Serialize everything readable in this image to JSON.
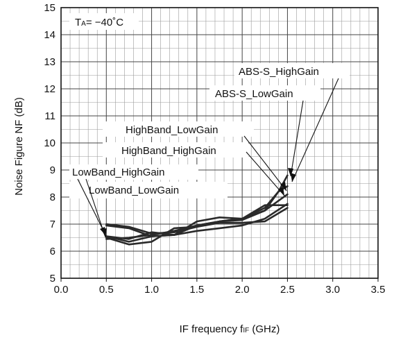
{
  "chart_data": {
    "type": "line",
    "title": "",
    "condition": {
      "prefix": "T",
      "subscript": "A",
      "value": "= −40˚C"
    },
    "xlabel": {
      "main": "IF frequency f",
      "subscript": "IF",
      "unit": " (GHz)"
    },
    "ylabel": "Noise Figure NF (dB)",
    "xlim": [
      0.0,
      3.5
    ],
    "ylim": [
      5,
      15
    ],
    "x_ticks": [
      "0.0",
      "0.5",
      "1.0",
      "1.5",
      "2.0",
      "2.5",
      "3.0",
      "3.5"
    ],
    "y_ticks": [
      "5",
      "6",
      "7",
      "8",
      "9",
      "10",
      "11",
      "12",
      "13",
      "14",
      "15"
    ],
    "grid": true,
    "series": [
      {
        "name": "LowBand_HighGain",
        "x": [
          0.5,
          0.75,
          1.0,
          1.25,
          1.5,
          1.75,
          2.0,
          2.25,
          2.5
        ],
        "y": [
          6.5,
          6.25,
          6.35,
          6.85,
          6.9,
          7.1,
          7.2,
          7.7,
          7.7
        ]
      },
      {
        "name": "LowBand_LowGain",
        "x": [
          0.5,
          0.75,
          1.0,
          1.25,
          1.5,
          1.75,
          2.0,
          2.25,
          2.5
        ],
        "y": [
          6.55,
          6.35,
          6.55,
          6.6,
          7.1,
          7.25,
          7.2,
          7.5,
          8.1
        ]
      },
      {
        "name": "HighBand_HighGain",
        "x": [
          0.5,
          0.75,
          1.0,
          1.25,
          1.5,
          1.75,
          2.0,
          2.25,
          2.5
        ],
        "y": [
          7.0,
          6.9,
          6.65,
          6.7,
          6.9,
          7.05,
          7.05,
          7.1,
          7.6
        ]
      },
      {
        "name": "HighBand_LowGain",
        "x": [
          0.5,
          0.75,
          1.0,
          1.25,
          1.5,
          1.75,
          2.0,
          2.25,
          2.5
        ],
        "y": [
          6.95,
          6.85,
          6.55,
          6.6,
          6.75,
          6.85,
          6.95,
          7.2,
          7.75
        ]
      },
      {
        "name": "ABS-S_HighGain",
        "x": [
          0.5,
          0.75,
          1.0,
          1.25,
          1.5,
          1.75,
          2.0,
          2.25,
          2.4,
          2.5
        ],
        "y": [
          6.55,
          6.45,
          6.7,
          6.6,
          6.95,
          7.1,
          7.15,
          7.5,
          8.2,
          8.4
        ]
      },
      {
        "name": "ABS-S_LowGain",
        "x": [
          0.5,
          0.75,
          1.0,
          1.25,
          1.5,
          1.75,
          2.0,
          2.25,
          2.4,
          2.5
        ],
        "y": [
          6.45,
          6.5,
          6.6,
          6.75,
          6.95,
          7.1,
          7.2,
          7.6,
          8.2,
          8.8
        ]
      }
    ],
    "annotations": [
      {
        "text": "ABS-S_HighGain"
      },
      {
        "text": "ABS-S_LowGain"
      },
      {
        "text": "HighBand_LowGain"
      },
      {
        "text": "HighBand_HighGain"
      },
      {
        "text": "LowBand_HighGain"
      },
      {
        "text": "LowBand_LowGain"
      }
    ]
  }
}
